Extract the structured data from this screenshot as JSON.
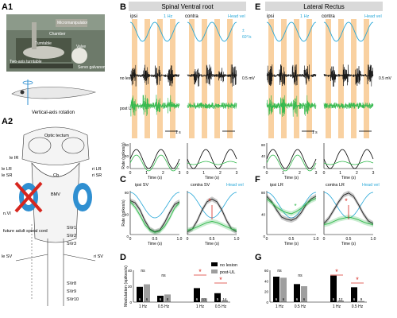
{
  "panels": {
    "A1": "A1",
    "A2": "A2",
    "B": "B",
    "C": "C",
    "D": "D",
    "E": "E",
    "F": "F",
    "G": "G"
  },
  "photo": {
    "labels": [
      "Micromanipulator",
      "Chamber",
      "Turntable",
      "Two-axis turntable",
      "Valve",
      "Servo galvanometer"
    ]
  },
  "fish_rotation_label": "Vertical-axis rotation",
  "brain": {
    "labels": [
      "Optic tectum",
      "le IR",
      "le SR",
      "le LR",
      "ri LR",
      "ri SR",
      "Cb",
      "BMV",
      "n.VI",
      "future adult spinal cord",
      "SVr1",
      "SVr2",
      "SVr3",
      "le SV",
      "ri SV",
      "SVr8",
      "SVr9",
      "SVr10"
    ]
  },
  "B": {
    "title": "Spinal Ventral root",
    "col_ipsi": "ipsi",
    "col_contra": "contra",
    "freq": "1 Hz",
    "head_vel": "Head vel",
    "scale_vel": "±",
    "scale_vel2": "60°/s",
    "trace_nolesion": "no lesion",
    "trace_postul": "post UL",
    "scale_mv": "0.5 mV",
    "scale_time": "1 s",
    "rate_label": "Rate (spikes/s)",
    "time_label": "Time (s)",
    "y_ticks": [
      "80",
      "40",
      "0"
    ],
    "x_ticks": [
      "0",
      "1",
      "2",
      "3"
    ]
  },
  "E": {
    "title": "Lateral Rectus",
    "col_ipsi": "ipsi",
    "col_contra": "contra",
    "freq": "1 Hz",
    "head_vel": "Head vel",
    "scale_mv": "0.5 mV",
    "scale_time": "1 s",
    "time_label": "Time (s)",
    "y_ticks": [
      "80",
      "40",
      "0"
    ],
    "x_ticks": [
      "0",
      "1",
      "2",
      "3"
    ]
  },
  "C": {
    "left_title": "ipsi SV",
    "right_title": "contra SV",
    "head_vel": "Head vel",
    "rate_label": "Rate (spikes/s)",
    "time_label": "Time (s)",
    "y_ticks": [
      "80",
      "40",
      "0"
    ],
    "x_ticks": [
      "0",
      "0.5",
      "1.0"
    ],
    "marker": "*"
  },
  "F": {
    "left_title": "ipsi LR",
    "right_title": "contra LR",
    "head_vel": "Head vel",
    "time_label": "Time (s)",
    "y_ticks": [
      "80",
      "40",
      "0"
    ],
    "x_ticks": [
      "0",
      "0.5",
      "1.0"
    ],
    "marker": "*"
  },
  "D": {
    "legend": [
      "no lesion",
      "post-UL"
    ],
    "ylabel": "Modulation (spikes/s)",
    "y_ticks": [
      "40",
      "20",
      "0"
    ],
    "x_ticks": [
      "1 Hz",
      "0.5 Hz",
      "1 Hz",
      "0.5 Hz"
    ],
    "ns": "ns",
    "marker": "*",
    "counts": [
      "6",
      "6",
      "6",
      "8",
      "6",
      "11",
      "5",
      "14"
    ]
  },
  "G": {
    "y_ticks": [
      "60",
      "40",
      "20",
      "0"
    ],
    "x_ticks": [
      "1 Hz",
      "0.5 Hz",
      "1 Hz",
      "0.5 Hz"
    ],
    "ns": "ns",
    "marker": "*",
    "counts": [
      "6",
      "6",
      "6",
      "6",
      "5",
      "12",
      "6",
      "9"
    ]
  },
  "chart_data": [
    {
      "type": "bar",
      "panel": "D",
      "categories": [
        "ipsi 1 Hz",
        "ipsi 0.5 Hz",
        "contra 1 Hz",
        "contra 0.5 Hz"
      ],
      "series": [
        {
          "name": "no lesion",
          "values": [
            24,
            10,
            22,
            14
          ]
        },
        {
          "name": "post-UL",
          "values": [
            28,
            12,
            6,
            3
          ]
        }
      ],
      "ylim": [
        0,
        50
      ],
      "ylabel": "Modulation (spikes/s)",
      "colors": [
        "#000000",
        "#9e9e9e"
      ]
    },
    {
      "type": "bar",
      "panel": "G",
      "categories": [
        "ipsi 1 Hz",
        "ipsi 0.5 Hz",
        "contra 1 Hz",
        "contra 0.5 Hz"
      ],
      "series": [
        {
          "name": "no lesion",
          "values": [
            48,
            34,
            50,
            28
          ]
        },
        {
          "name": "post-UL",
          "values": [
            46,
            30,
            3,
            2
          ]
        }
      ],
      "ylim": [
        0,
        60
      ],
      "ylabel": "",
      "colors": [
        "#000000",
        "#9e9e9e"
      ]
    },
    {
      "type": "line",
      "panel": "C",
      "x": [
        0,
        0.1,
        0.2,
        0.3,
        0.4,
        0.5,
        0.6,
        0.7,
        0.8,
        0.9,
        1.0
      ],
      "series": [
        {
          "name": "ipsi SV no lesion",
          "values": [
            62,
            58,
            45,
            25,
            10,
            5,
            8,
            22,
            40,
            55,
            60
          ]
        },
        {
          "name": "ipsi SV post-UL",
          "values": [
            60,
            50,
            35,
            18,
            8,
            4,
            6,
            15,
            30,
            48,
            58
          ]
        },
        {
          "name": "contra SV no lesion",
          "values": [
            5,
            10,
            25,
            45,
            60,
            65,
            60,
            45,
            25,
            10,
            5
          ]
        },
        {
          "name": "contra SV post-UL",
          "values": [
            8,
            10,
            14,
            18,
            22,
            24,
            22,
            18,
            14,
            10,
            8
          ]
        }
      ],
      "ylim": [
        0,
        80
      ]
    },
    {
      "type": "line",
      "panel": "F",
      "x": [
        0,
        0.1,
        0.2,
        0.3,
        0.4,
        0.5,
        0.6,
        0.7,
        0.8,
        0.9,
        1.0
      ],
      "series": [
        {
          "name": "ipsi LR no lesion",
          "values": [
            70,
            60,
            45,
            32,
            28,
            26,
            30,
            40,
            55,
            65,
            70
          ]
        },
        {
          "name": "ipsi LR post-UL",
          "values": [
            65,
            58,
            50,
            44,
            40,
            38,
            42,
            48,
            56,
            62,
            66
          ]
        },
        {
          "name": "contra LR no lesion",
          "values": [
            20,
            30,
            45,
            60,
            72,
            76,
            70,
            55,
            38,
            25,
            20
          ]
        },
        {
          "name": "contra LR post-UL",
          "values": [
            18,
            20,
            24,
            28,
            30,
            32,
            30,
            27,
            23,
            20,
            18
          ]
        }
      ],
      "ylim": [
        0,
        80
      ]
    }
  ],
  "colors": {
    "orange": "#f7c58a",
    "cyan": "#29a8d8",
    "green": "#2fb84a",
    "red": "#d7261e",
    "gray": "#9e9e9e",
    "blue": "#2f8fd1"
  }
}
